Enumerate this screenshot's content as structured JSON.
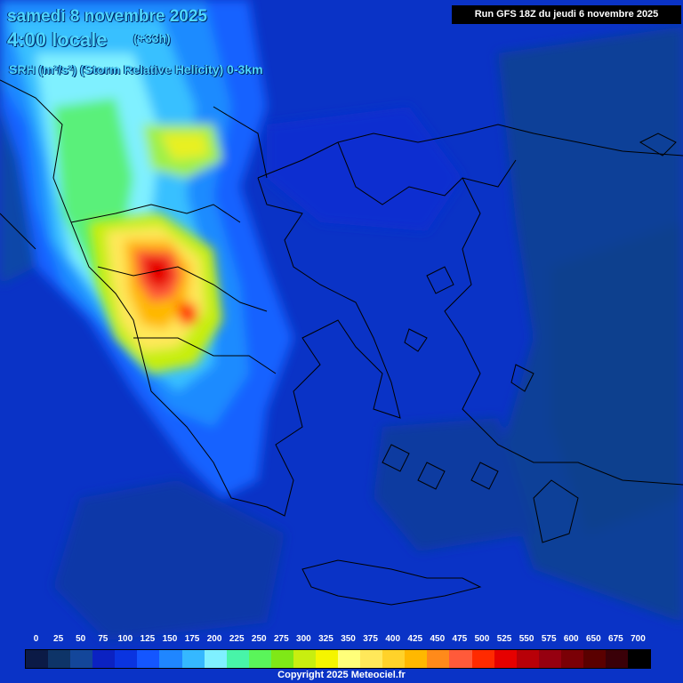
{
  "header": {
    "date": "samedi 8 novembre 2025",
    "time": "4:00 locale",
    "lead": "(+33h)",
    "parameter": "SRH (m²/s²) (Storm Relative Helicity) 0-3km",
    "run": "Run GFS 18Z du jeudi 6 novembre 2025"
  },
  "legend": {
    "labels": [
      "0",
      "25",
      "50",
      "75",
      "100",
      "125",
      "150",
      "175",
      "200",
      "225",
      "250",
      "275",
      "300",
      "325",
      "350",
      "375",
      "400",
      "425",
      "450",
      "475",
      "500",
      "525",
      "550",
      "575",
      "600",
      "650",
      "675",
      "700"
    ],
    "colors": [
      "#0b1a46",
      "#0e3468",
      "#13469a",
      "#0b22c2",
      "#0a34e0",
      "#1456ff",
      "#1f86ff",
      "#35b8ff",
      "#7ff0ff",
      "#48f4a8",
      "#5af55a",
      "#7fe817",
      "#c8ee10",
      "#f5f500",
      "#ffff7a",
      "#ffe85a",
      "#ffd22a",
      "#ffb800",
      "#ff8a1a",
      "#ff5a3a",
      "#ff2a00",
      "#e60000",
      "#b80008",
      "#960010",
      "#7a0006",
      "#5a0000",
      "#3a0008",
      "#000000"
    ]
  },
  "copyright": "Copyright 2025 Meteociel.fr"
}
